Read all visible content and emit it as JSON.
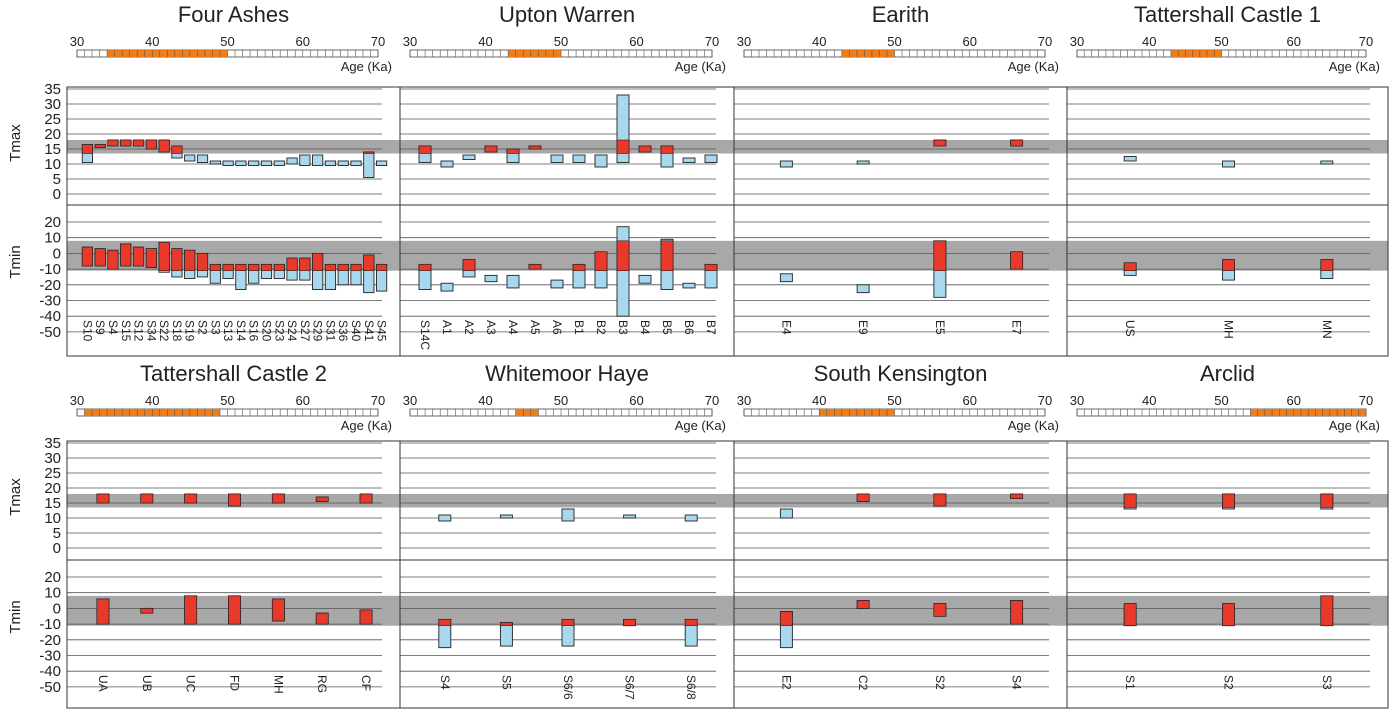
{
  "figure": {
    "tmax_label": "Tmax",
    "tmin_label": "Tmin",
    "age_axis_label": "Age (Ka)",
    "age_ticks": [
      30,
      40,
      50,
      60,
      70
    ],
    "tmax_ticks": [
      0,
      5,
      10,
      15,
      20,
      25,
      30,
      35
    ],
    "tmin_ticks": [
      20,
      10,
      0,
      -10,
      -20,
      -30,
      -40,
      -50
    ],
    "reference_band_tmax": [
      13.5,
      18
    ],
    "reference_band_tmin": [
      -11,
      8
    ],
    "colors": {
      "red_range": "#e8392b",
      "blue_range": "#a8d8ee",
      "age_bar": "#ef7d1a",
      "band": "#a8a8a8"
    }
  },
  "chart_data": [
    {
      "type": "bar",
      "title": "Four Ashes",
      "age_range": [
        34,
        50
      ],
      "categories": [
        "S10",
        "S9",
        "S4",
        "S15",
        "S12",
        "S34",
        "S22",
        "S18",
        "S19",
        "S2",
        "S3",
        "S13",
        "S14",
        "S16",
        "S20",
        "S23",
        "S24",
        "S27",
        "S29",
        "S31",
        "S36",
        "S40",
        "S41",
        "S45"
      ],
      "tmax": [
        [
          10.5,
          16.5
        ],
        [
          15.5,
          16.5
        ],
        [
          16,
          18
        ],
        [
          16,
          18
        ],
        [
          16,
          18
        ],
        [
          15,
          18
        ],
        [
          14,
          18
        ],
        [
          12,
          16
        ],
        [
          11,
          13
        ],
        [
          10.5,
          13
        ],
        [
          10,
          11
        ],
        [
          9.5,
          11
        ],
        [
          9.5,
          11
        ],
        [
          9.5,
          11
        ],
        [
          9.5,
          11
        ],
        [
          9.5,
          11
        ],
        [
          10,
          12
        ],
        [
          9.5,
          13
        ],
        [
          9.5,
          13
        ],
        [
          9.5,
          11
        ],
        [
          9.5,
          11
        ],
        [
          9.5,
          11
        ],
        [
          5.5,
          14
        ],
        [
          9.5,
          11
        ]
      ],
      "tmin": [
        [
          -8,
          4
        ],
        [
          -8,
          3
        ],
        [
          -10,
          2
        ],
        [
          -8,
          6
        ],
        [
          -8,
          4
        ],
        [
          -9,
          3
        ],
        [
          -12,
          7
        ],
        [
          -15,
          3
        ],
        [
          -16,
          2
        ],
        [
          -15,
          0
        ],
        [
          -19,
          -7
        ],
        [
          -16,
          -7
        ],
        [
          -23,
          -7
        ],
        [
          -19,
          -7
        ],
        [
          -16,
          -7
        ],
        [
          -16,
          -7
        ],
        [
          -17,
          -3
        ],
        [
          -17,
          -3
        ],
        [
          -23,
          0
        ],
        [
          -23,
          -7
        ],
        [
          -20,
          -7
        ],
        [
          -20,
          -7
        ],
        [
          -25,
          -1
        ],
        [
          -24,
          -7
        ]
      ]
    },
    {
      "type": "bar",
      "title": "Upton Warren",
      "age_range": [
        43,
        50
      ],
      "categories": [
        "S14C",
        "A1",
        "A2",
        "A3",
        "A4",
        "A5",
        "A6",
        "B1",
        "B2",
        "B3",
        "B4",
        "B5",
        "B6",
        "B7"
      ],
      "tmax": [
        [
          10.5,
          16
        ],
        [
          9,
          11
        ],
        [
          11.5,
          13
        ],
        [
          14,
          16
        ],
        [
          10.5,
          15
        ],
        [
          15,
          16
        ],
        [
          10.5,
          13
        ],
        [
          10.5,
          13
        ],
        [
          9,
          13
        ],
        [
          10.5,
          33
        ],
        [
          14,
          16
        ],
        [
          9,
          16
        ],
        [
          10.5,
          12
        ],
        [
          10.5,
          13
        ]
      ],
      "tmin": [
        [
          -23,
          -7
        ],
        [
          -24,
          -19
        ],
        [
          -15,
          -4
        ],
        [
          -18,
          -14
        ],
        [
          -22,
          -14
        ],
        [
          -10,
          -7
        ],
        [
          -22,
          -17
        ],
        [
          -22,
          -7
        ],
        [
          -22,
          1
        ],
        [
          -40,
          17
        ],
        [
          -19,
          -14
        ],
        [
          -23,
          9
        ],
        [
          -22,
          -19
        ],
        [
          -22,
          -7
        ]
      ]
    },
    {
      "type": "bar",
      "title": "Earith",
      "age_range": [
        43,
        50
      ],
      "categories": [
        "E4",
        "E9",
        "E5",
        "E7"
      ],
      "tmax": [
        [
          9,
          11
        ],
        [
          10,
          11
        ],
        [
          16,
          18
        ],
        [
          16,
          18
        ]
      ],
      "tmin": [
        [
          -18,
          -13
        ],
        [
          -25,
          -20
        ],
        [
          -28,
          8
        ],
        [
          -10,
          1
        ]
      ]
    },
    {
      "type": "bar",
      "title": "Tattershall Castle 1",
      "age_range": [
        43,
        50
      ],
      "categories": [
        "US",
        "MH",
        "MN"
      ],
      "tmax": [
        [
          11,
          12.5
        ],
        [
          9,
          11
        ],
        [
          10,
          11
        ]
      ],
      "tmin": [
        [
          -14,
          -6
        ],
        [
          -17,
          -4
        ],
        [
          -16,
          -4
        ]
      ]
    },
    {
      "type": "bar",
      "title": "Tattershall Castle 2",
      "age_range": [
        31,
        49
      ],
      "categories": [
        "UA",
        "UB",
        "UC",
        "FD",
        "MH",
        "RG",
        "CF"
      ],
      "tmax": [
        [
          15,
          18
        ],
        [
          15,
          18
        ],
        [
          15,
          18
        ],
        [
          14,
          18
        ],
        [
          15,
          18
        ],
        [
          15.5,
          17
        ],
        [
          15,
          18
        ]
      ],
      "tmin": [
        [
          -10,
          6
        ],
        [
          -3,
          0
        ],
        [
          -10,
          8
        ],
        [
          -10,
          8
        ],
        [
          -8,
          6
        ],
        [
          -10,
          -3
        ],
        [
          -10,
          -1
        ]
      ]
    },
    {
      "type": "bar",
      "title": "Whitemoor Haye",
      "age_range": [
        44,
        47
      ],
      "categories": [
        "S4",
        "S5",
        "S6/6",
        "S6/7",
        "S6/8"
      ],
      "tmax": [
        [
          9,
          11
        ],
        [
          10,
          11
        ],
        [
          9,
          13
        ],
        [
          10,
          11
        ],
        [
          9,
          11
        ]
      ],
      "tmin": [
        [
          -25,
          -7
        ],
        [
          -24,
          -9
        ],
        [
          -24,
          -7
        ],
        [
          -11,
          -7
        ],
        [
          -24,
          -7
        ]
      ]
    },
    {
      "type": "bar",
      "title": "South Kensington",
      "age_range": [
        40,
        50
      ],
      "categories": [
        "E2",
        "C2",
        "S2",
        "S4"
      ],
      "tmax": [
        [
          10,
          13
        ],
        [
          15.5,
          18
        ],
        [
          14,
          18
        ],
        [
          16.5,
          18
        ]
      ],
      "tmin": [
        [
          -25,
          -2
        ],
        [
          0,
          5
        ],
        [
          -5,
          3
        ],
        [
          -10,
          5
        ]
      ]
    },
    {
      "type": "bar",
      "title": "Arclid",
      "age_range": [
        54,
        70
      ],
      "categories": [
        "S1",
        "S2",
        "S3"
      ],
      "tmax": [
        [
          13,
          18
        ],
        [
          13,
          18
        ],
        [
          13,
          18
        ]
      ],
      "tmin": [
        [
          -11,
          3
        ],
        [
          -11,
          3
        ],
        [
          -11,
          8
        ]
      ]
    }
  ]
}
